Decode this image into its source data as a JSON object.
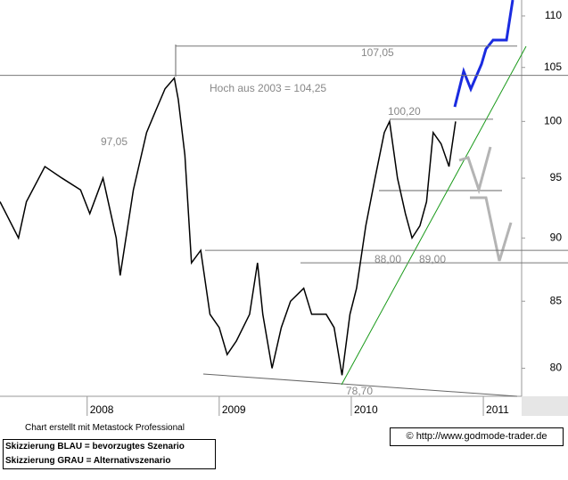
{
  "chart_data": {
    "type": "line",
    "color": "#000000",
    "log_scale": true,
    "x": [
      2007.34,
      2007.48,
      2007.54,
      2007.68,
      2007.81,
      2007.95,
      2008.02,
      2008.12,
      2008.22,
      2008.25,
      2008.35,
      2008.45,
      2008.52,
      2008.59,
      2008.66,
      2008.69,
      2008.74,
      2008.79,
      2008.86,
      2008.93,
      2009.0,
      2009.06,
      2009.13,
      2009.23,
      2009.29,
      2009.33,
      2009.4,
      2009.47,
      2009.54,
      2009.64,
      2009.7,
      2009.81,
      2009.87,
      2009.93,
      2009.99,
      2010.04,
      2010.11,
      2010.18,
      2010.25,
      2010.29,
      2010.35,
      2010.41,
      2010.46,
      2010.52,
      2010.57,
      2010.62,
      2010.68,
      2010.74,
      2010.79
    ],
    "values": [
      93,
      90,
      93,
      96,
      95,
      94,
      92,
      95,
      90,
      87,
      94,
      99,
      101,
      103,
      104,
      102,
      97,
      88,
      89,
      84,
      83,
      81,
      82,
      84,
      88,
      84,
      80,
      83,
      85,
      86,
      84,
      84,
      83,
      79.5,
      84,
      86,
      91,
      95,
      99,
      100,
      95,
      92,
      90,
      91,
      93,
      99,
      98,
      96,
      100
    ],
    "xlim": [
      2007.34,
      2011.29
    ],
    "xticks": [
      2008,
      2009,
      2010,
      2011
    ],
    "ylim": [
      78,
      111.6
    ],
    "yticks": [
      80,
      85,
      90,
      95,
      100,
      105,
      110
    ],
    "levels": [
      {
        "value": 107.05,
        "label": "107,05"
      },
      {
        "value": 104.25,
        "label": "Hoch aus 2003  =  104,25"
      },
      {
        "value": 100.2,
        "label": "100,20"
      },
      {
        "value": 97.05,
        "label": "97,05"
      },
      {
        "value": 89,
        "label": "89,00"
      },
      {
        "value": 88,
        "label": "88,00"
      },
      {
        "value": 78.7,
        "label": "78,70"
      }
    ]
  },
  "footer": {
    "credit": "Chart erstellt mit Metastock Professional",
    "legend_lines": [
      "Skizzierung BLAU = bevorzugtes Szenario",
      "Skizzierung GRAU = Alternativszenario"
    ],
    "source": "© http://www.godmode-trader.de"
  }
}
